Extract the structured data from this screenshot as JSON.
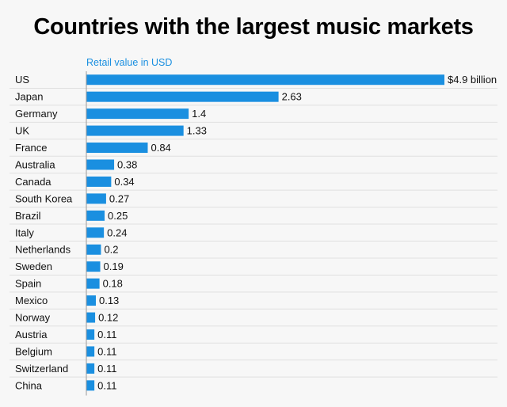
{
  "chart_data": {
    "type": "bar",
    "orientation": "horizontal",
    "title": "Countries with the largest music markets",
    "subtitle": "Retail value in USD",
    "categories": [
      "US",
      "Japan",
      "Germany",
      "UK",
      "France",
      "Australia",
      "Canada",
      "South Korea",
      "Brazil",
      "Italy",
      "Netherlands",
      "Sweden",
      "Spain",
      "Mexico",
      "Norway",
      "Austria",
      "Belgium",
      "Switzerland",
      "China"
    ],
    "values": [
      4.9,
      2.63,
      1.4,
      1.33,
      0.84,
      0.38,
      0.34,
      0.27,
      0.25,
      0.24,
      0.2,
      0.19,
      0.18,
      0.13,
      0.12,
      0.11,
      0.11,
      0.11,
      0.11
    ],
    "value_labels": [
      "$4.9 billion",
      "2.63",
      "1.4",
      "1.33",
      "0.84",
      "0.38",
      "0.34",
      "0.27",
      "0.25",
      "0.24",
      "0.2",
      "0.19",
      "0.18",
      "0.13",
      "0.12",
      "0.11",
      "0.11",
      "0.11",
      "0.11"
    ],
    "xlim": [
      0,
      4.9
    ],
    "bar_color": "#1a8fe0",
    "grid": true
  }
}
